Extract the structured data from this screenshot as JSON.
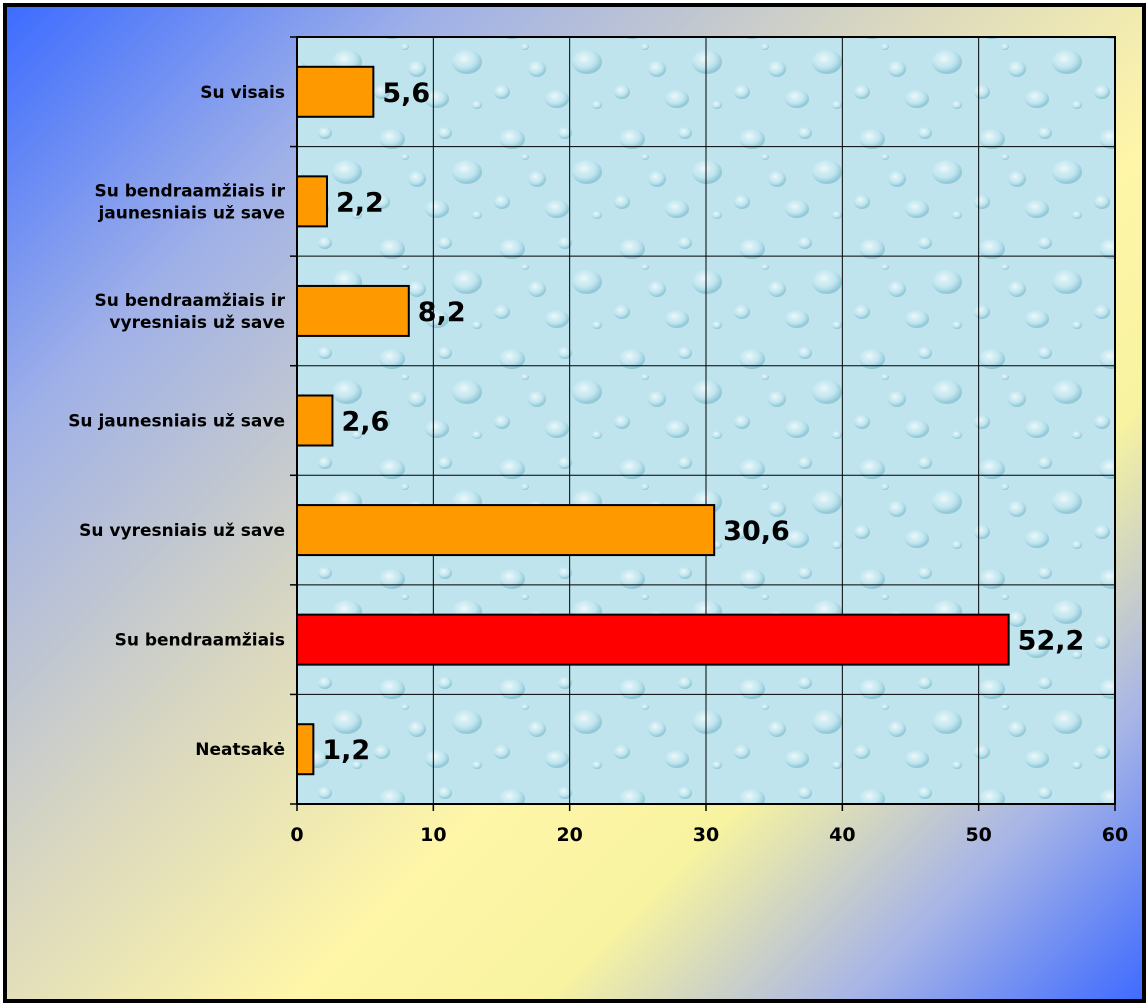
{
  "chart_data": {
    "type": "bar",
    "orientation": "horizontal",
    "categories": [
      "Su visais",
      "Su bendraamžiais ir jaunesniais už save",
      "Su bendraamžiais ir vyresniais už save",
      "Su jaunesniais už save",
      "Su vyresniais už save",
      "Su bendraamžiais",
      "Neatsakė"
    ],
    "category_lines": [
      [
        "Su visais"
      ],
      [
        "Su bendraamžiais ir",
        "jaunesniais už save"
      ],
      [
        "Su bendraamžiais ir",
        "vyresniais už save "
      ],
      [
        "Su jaunesniais už save"
      ],
      [
        "Su vyresniais už save"
      ],
      [
        "Su bendraamžiais"
      ],
      [
        "Neatsakė"
      ]
    ],
    "values": [
      5.6,
      2.2,
      8.2,
      2.6,
      30.6,
      52.2,
      1.2
    ],
    "value_labels": [
      "5,6",
      "2,2",
      "8,2",
      "2,6",
      "30,6",
      "52,2",
      "1,2"
    ],
    "bar_colors": [
      "#ff9900",
      "#ff9900",
      "#ff9900",
      "#ff9900",
      "#ff9900",
      "#ff0000",
      "#ff9900"
    ],
    "xlim": [
      0,
      60
    ],
    "x_ticks": [
      0,
      10,
      20,
      30,
      40,
      50,
      60
    ],
    "grid": true,
    "legend": "none",
    "title": "",
    "xlabel": "",
    "ylabel": "",
    "plot_background": "#bfe4ee"
  }
}
